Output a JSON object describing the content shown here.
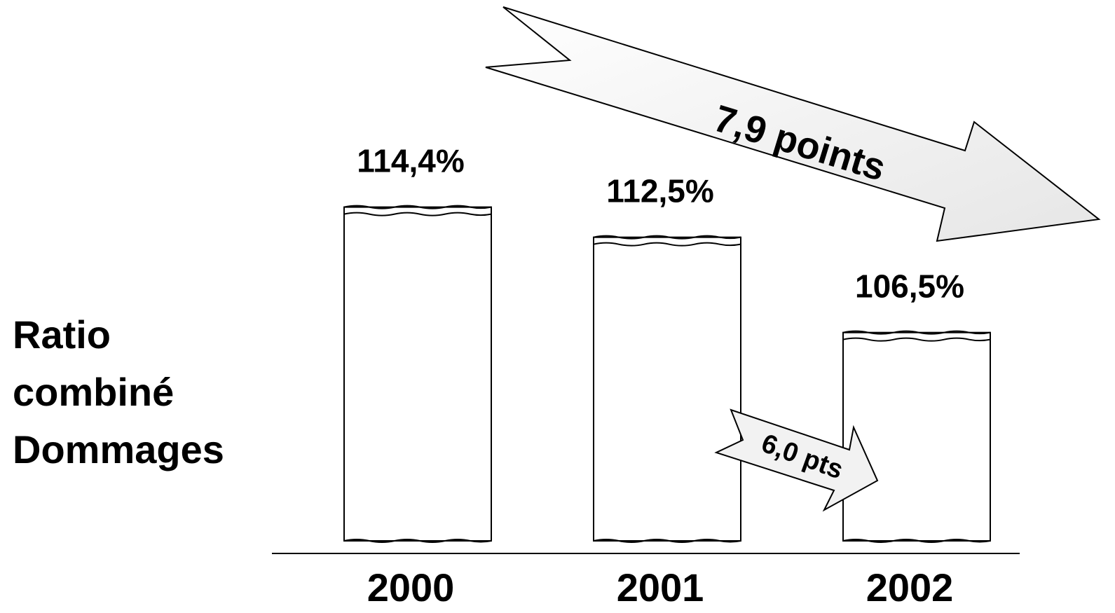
{
  "chart_data": {
    "type": "bar",
    "categories": [
      "2000",
      "2001",
      "2002"
    ],
    "values": [
      114.4,
      112.5,
      106.5
    ],
    "value_labels": [
      "114,4%",
      "112,5%",
      "106,5%"
    ],
    "unit": "%",
    "title": "",
    "ylabel_lines": [
      "Ratio",
      "combiné",
      "Dommages"
    ],
    "xlabel": "",
    "ylim": [
      100,
      115
    ],
    "grid": false,
    "legend": "none",
    "annotations": [
      {
        "text": "7,9 points",
        "from": "2000",
        "to": "2002",
        "style": "large-arrow"
      },
      {
        "text": "6,0 pts",
        "from": "2001",
        "to": "2002",
        "style": "small-arrow"
      }
    ],
    "colors": {
      "bar_fill": "#ffffff",
      "bar_stroke": "#000000",
      "arrow_fill": "#f2f2f2",
      "text": "#000000"
    }
  }
}
